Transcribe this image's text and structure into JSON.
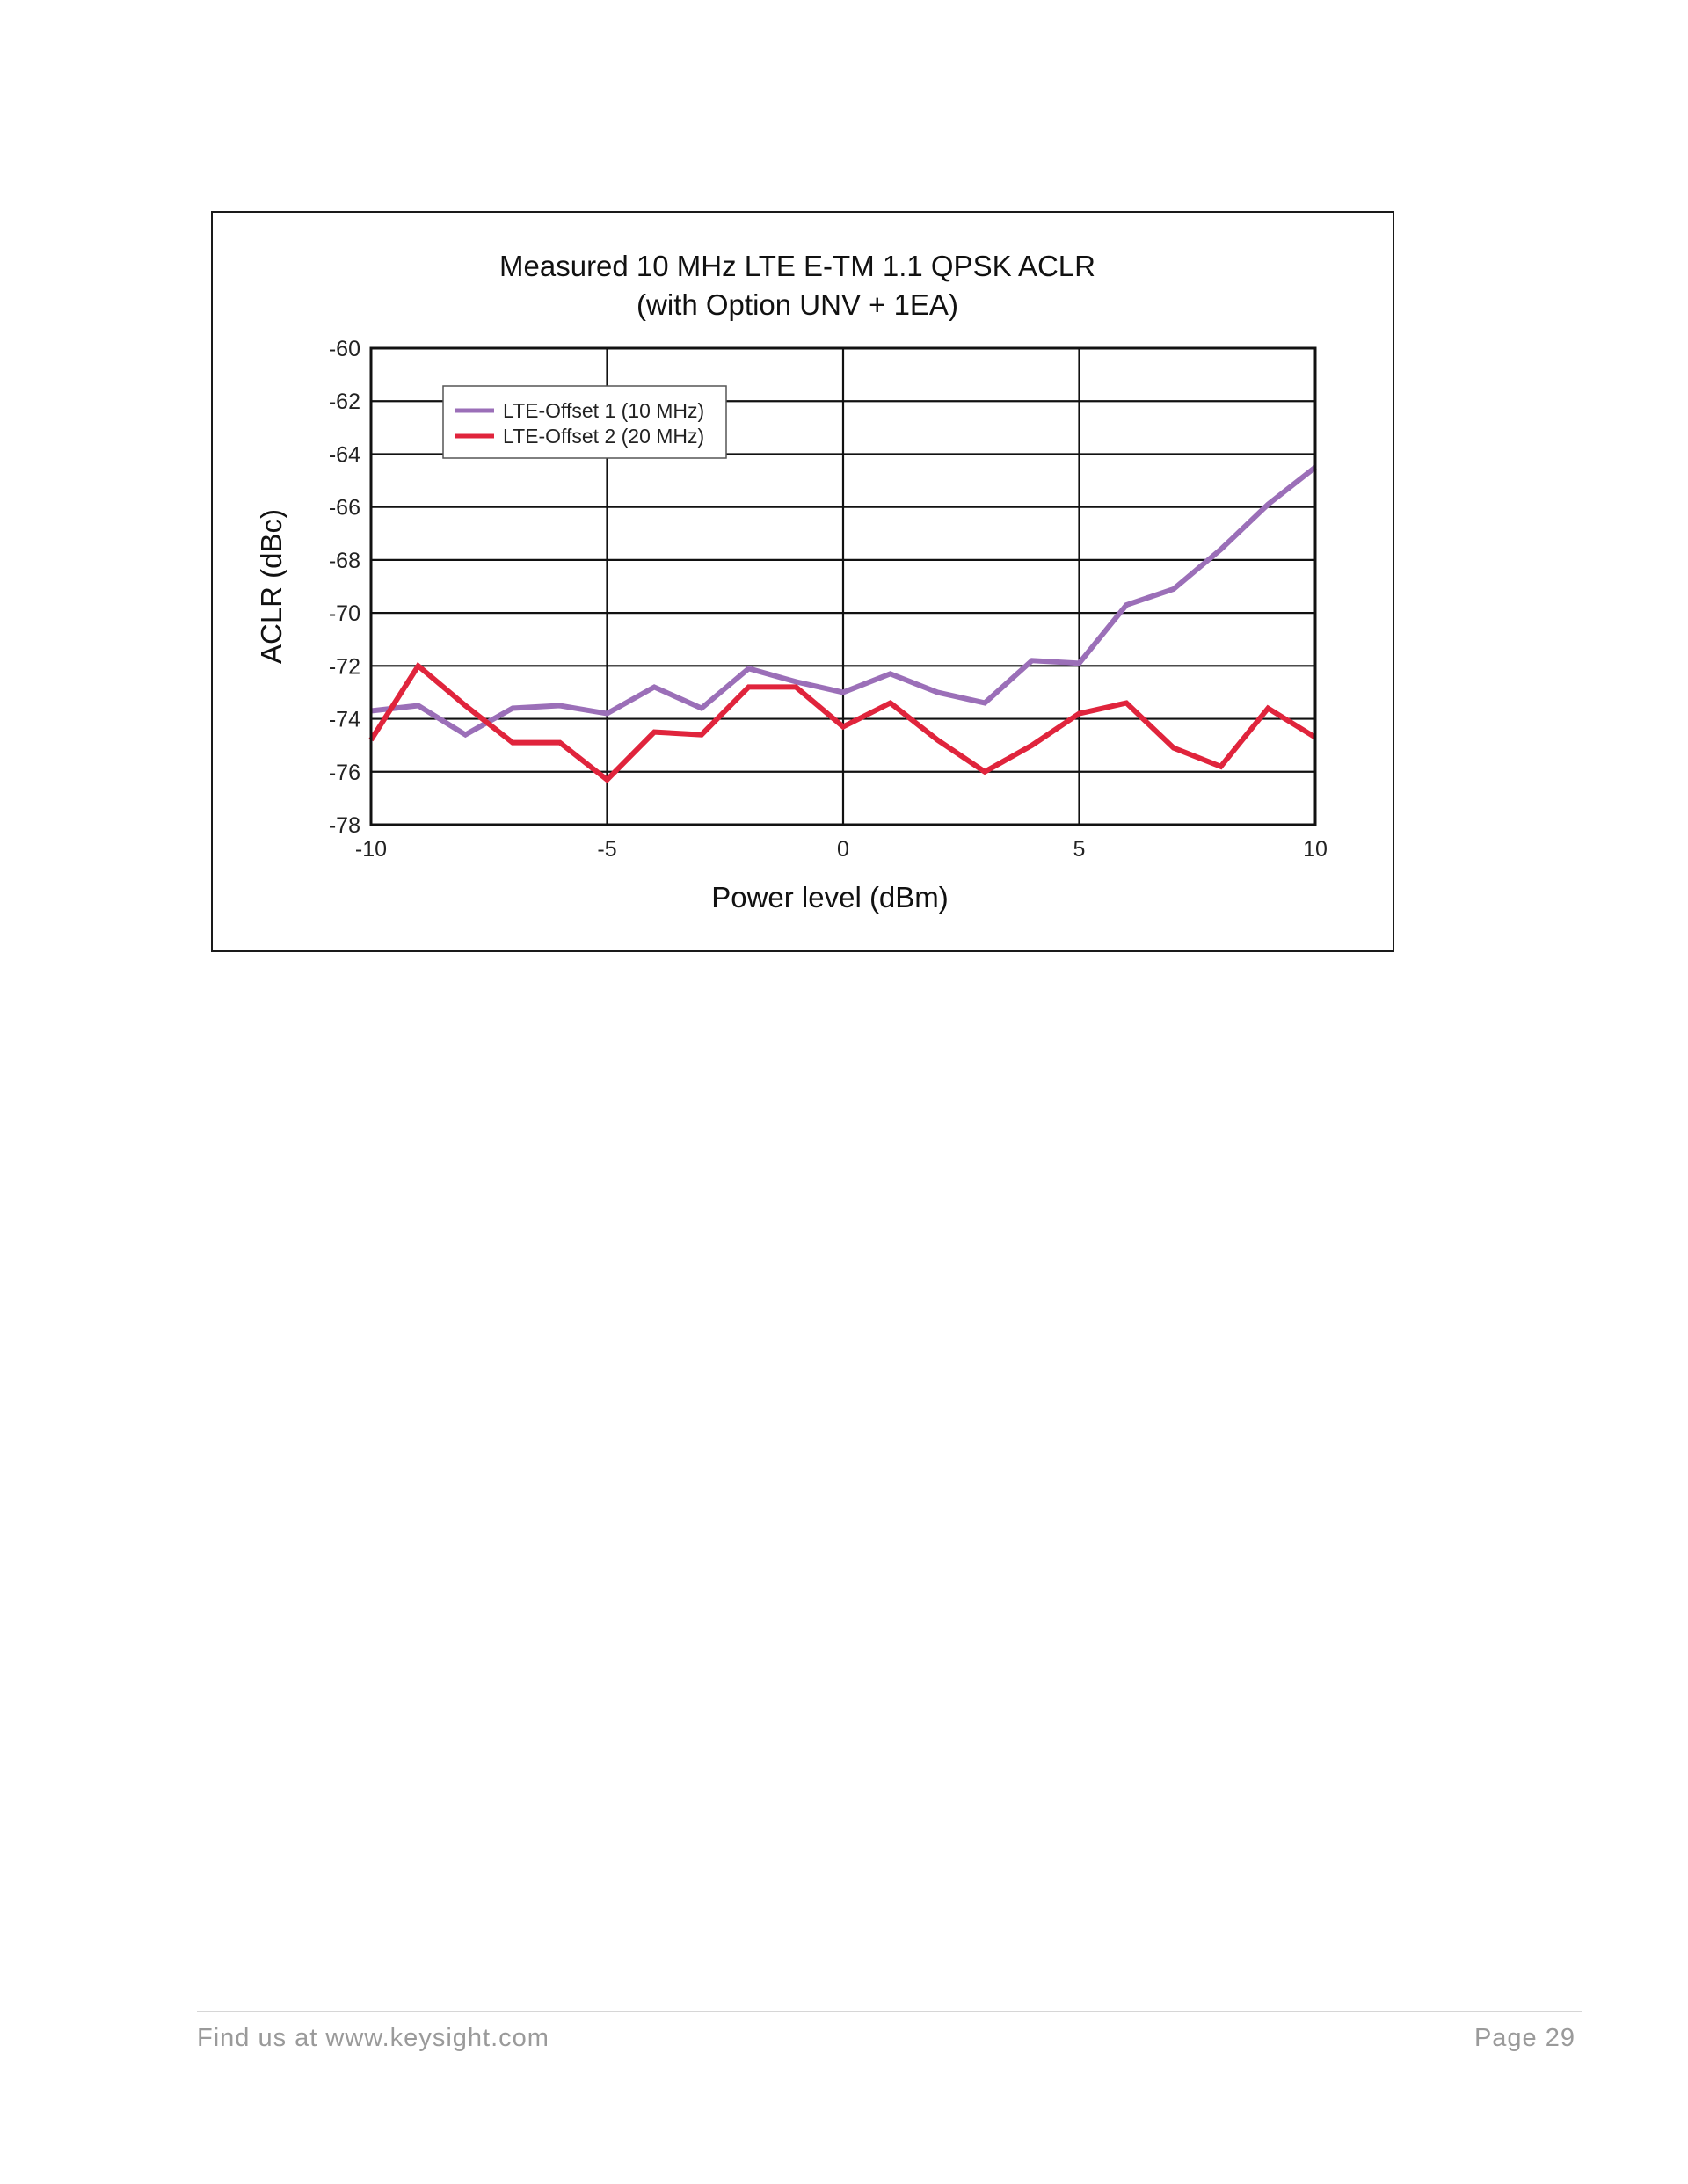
{
  "chart_data": {
    "type": "line",
    "title": "Measured 10 MHz LTE E-TM 1.1 QPSK ACLR",
    "subtitle": "(with Option UNV + 1EA)",
    "xlabel": "Power level (dBm)",
    "ylabel": "ACLR (dBc)",
    "xlim": [
      -10,
      10
    ],
    "ylim": [
      -78,
      -60
    ],
    "xticks": [
      -10,
      -5,
      0,
      5,
      10
    ],
    "xtick_labels": [
      "-10",
      "-5",
      "0",
      "5",
      "10"
    ],
    "yticks": [
      -60,
      -62,
      -64,
      -66,
      -68,
      -70,
      -72,
      -74,
      -76,
      -78
    ],
    "ytick_labels": [
      "-60",
      "-62",
      "-64",
      "-66",
      "-68",
      "-70",
      "-72",
      "-74",
      "-76",
      "-78"
    ],
    "grid": true,
    "legend_position": "top-left",
    "x": [
      -10,
      -9,
      -8,
      -7,
      -6,
      -5,
      -4,
      -3,
      -2,
      -1,
      0,
      1,
      2,
      3,
      4,
      5,
      6,
      7,
      8,
      9,
      10
    ],
    "series": [
      {
        "name": "LTE-Offset 1 (10 MHz)",
        "color": "#9b6fb8",
        "values": [
          -73.7,
          -73.5,
          -74.6,
          -73.6,
          -73.5,
          -73.8,
          -72.8,
          -73.6,
          -72.1,
          -72.6,
          -73.0,
          -72.3,
          -73.0,
          -73.4,
          -71.8,
          -71.9,
          -69.7,
          -69.1,
          -67.6,
          -65.9,
          -64.5
        ]
      },
      {
        "name": "LTE-Offset 2 (20 MHz)",
        "color": "#e0243c",
        "values": [
          -74.8,
          -72.0,
          -73.5,
          -74.9,
          -74.9,
          -76.3,
          -74.5,
          -74.6,
          -72.8,
          -72.8,
          -74.3,
          -73.4,
          -74.8,
          -76.0,
          -75.0,
          -73.8,
          -73.4,
          -75.1,
          -75.8,
          -73.6,
          -74.7
        ]
      }
    ]
  },
  "footer": {
    "left_text": "Find us at www.keysight.com",
    "right_text": "Page 29"
  }
}
